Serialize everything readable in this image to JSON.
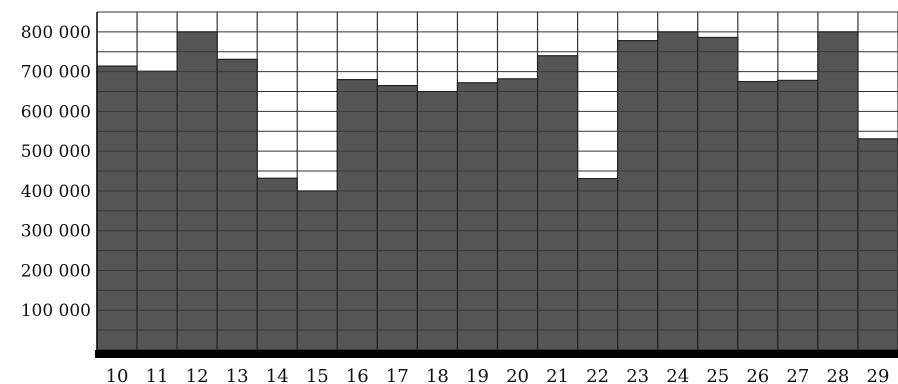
{
  "chart_data": {
    "type": "bar",
    "title": "",
    "xlabel": "",
    "ylabel": "",
    "categories": [
      "10",
      "11",
      "12",
      "13",
      "14",
      "15",
      "16",
      "17",
      "18",
      "19",
      "20",
      "21",
      "22",
      "23",
      "24",
      "25",
      "26",
      "27",
      "28",
      "29"
    ],
    "values": [
      714000,
      701000,
      800000,
      731000,
      432000,
      400000,
      680000,
      665000,
      650000,
      672000,
      682000,
      740000,
      431000,
      778000,
      800000,
      786000,
      675000,
      678000,
      800000,
      531000
    ],
    "ylim": [
      0,
      850000
    ],
    "yticks": [
      {
        "value": 100000,
        "label": "100 000"
      },
      {
        "value": 200000,
        "label": "200 000"
      },
      {
        "value": 300000,
        "label": "300 000"
      },
      {
        "value": 400000,
        "label": "400 000"
      },
      {
        "value": 500000,
        "label": "500 000"
      },
      {
        "value": 600000,
        "label": "600 000"
      },
      {
        "value": 700000,
        "label": "700 000"
      },
      {
        "value": 800000,
        "label": "800 000"
      }
    ],
    "grid": true,
    "grid_minor_step": 50000,
    "bar_color": "#555555",
    "grid_color": "#333333"
  }
}
